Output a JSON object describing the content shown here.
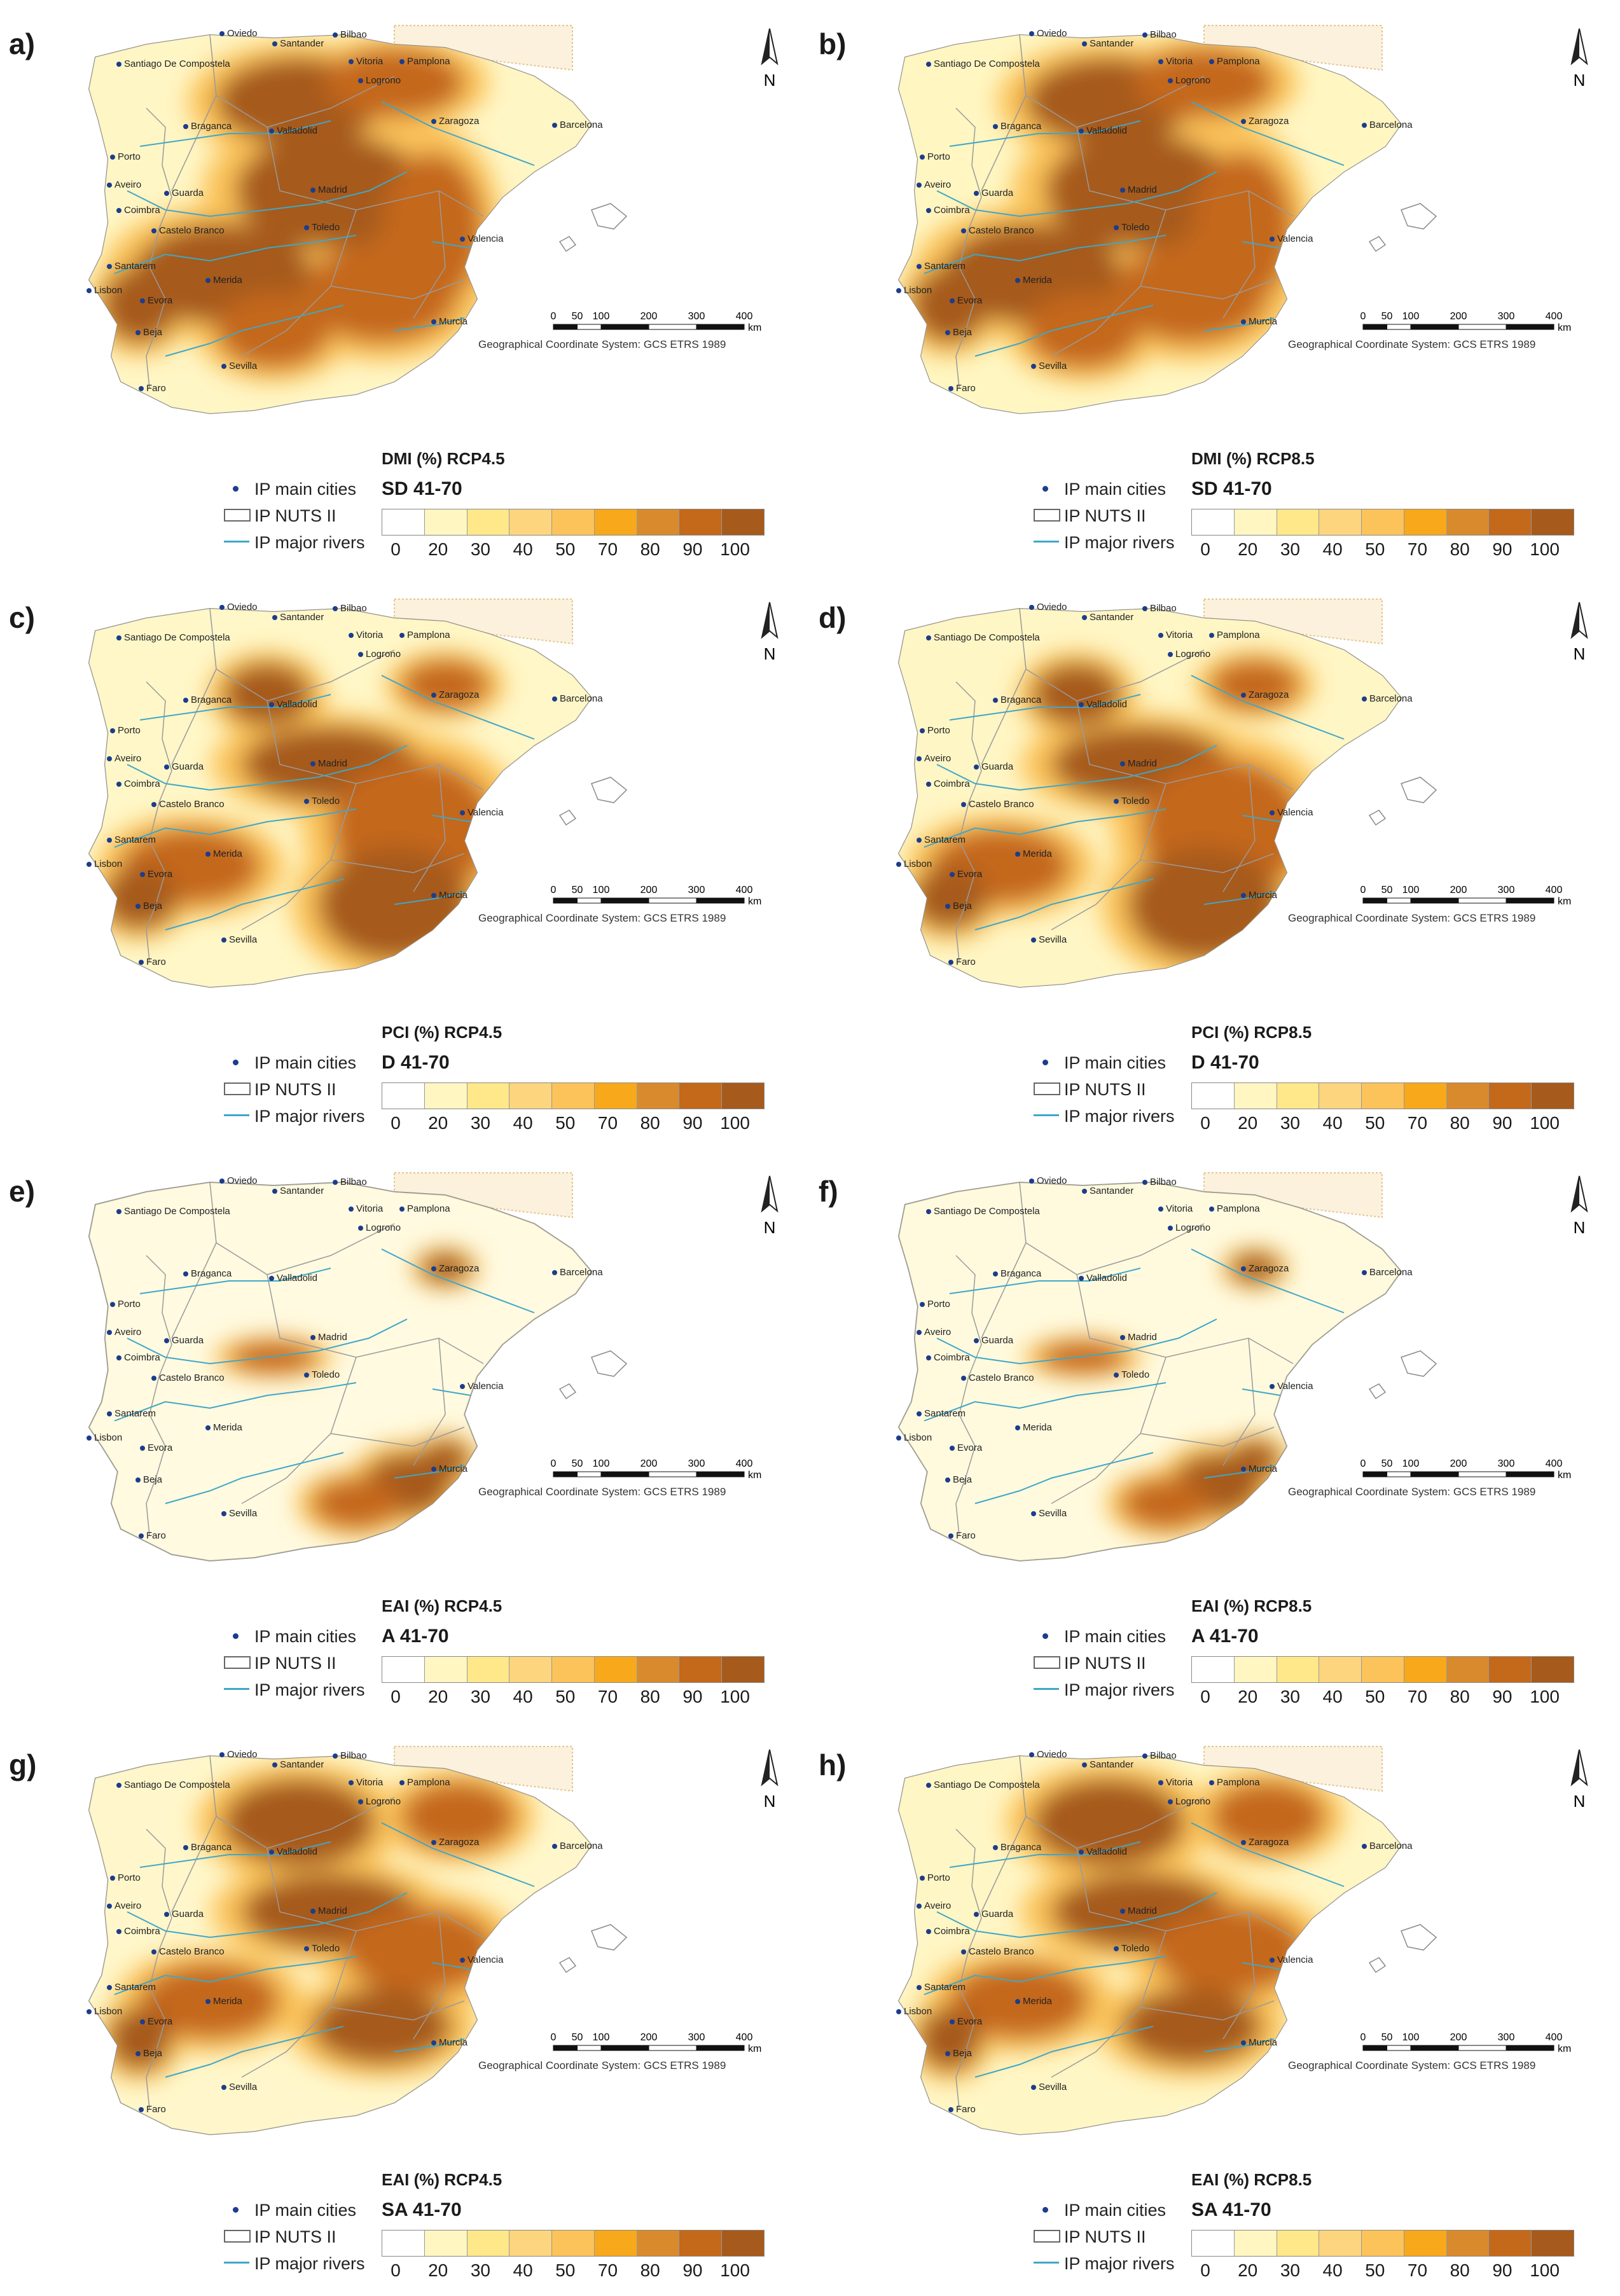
{
  "legend": {
    "cities": "IP main cities",
    "nuts": "IP NUTS II",
    "rivers": "IP major rivers",
    "classes": [
      "0",
      "20",
      "30",
      "40",
      "50",
      "70",
      "80",
      "90",
      "100"
    ],
    "colors": [
      "#ffffff",
      "#fff6c2",
      "#fee88a",
      "#fdd57e",
      "#fbc35a",
      "#f7a81b",
      "#d98a2c",
      "#c4681a",
      "#a65a1c"
    ]
  },
  "map": {
    "north": "N",
    "scale_labels": [
      "0",
      "50",
      "100",
      "200",
      "300",
      "400"
    ],
    "scale_unit": "km",
    "gcs": "Geographical Coordinate System: GCS ETRS 1989",
    "cities": [
      "Oviedo",
      "Santander",
      "Bilbao",
      "Santiago De Compostela",
      "Vitoria",
      "Pamplona",
      "Logrono",
      "Zaragoza",
      "Barcelona",
      "Braganca",
      "Valladolid",
      "Porto",
      "Aveiro",
      "Guarda",
      "Coimbra",
      "Madrid",
      "Castelo Branco",
      "Toledo",
      "Valencia",
      "Santarem",
      "Merida",
      "Lisbon",
      "Evora",
      "Beja",
      "Murcia",
      "Sevilla",
      "Faro"
    ]
  },
  "panels": [
    {
      "label": "a)",
      "title": "DMI (%) RCP4.5",
      "period": "SD 41-70",
      "level": 0.75
    },
    {
      "label": "b)",
      "title": "DMI (%) RCP8.5",
      "period": "SD 41-70",
      "level": 0.85
    },
    {
      "label": "c)",
      "title": "PCI (%) RCP4.5",
      "period": "D 41-70",
      "level": 0.7
    },
    {
      "label": "d)",
      "title": "PCI (%) RCP8.5",
      "period": "D 41-70",
      "level": 0.75
    },
    {
      "label": "e)",
      "title": "EAI (%) RCP4.5",
      "period": "A 41-70",
      "level": 0.3
    },
    {
      "label": "f)",
      "title": "EAI (%) RCP8.5",
      "period": "A 41-70",
      "level": 0.35
    },
    {
      "label": "g)",
      "title": "EAI (%) RCP4.5",
      "period": "SA 41-70",
      "level": 0.65
    },
    {
      "label": "h)",
      "title": "EAI (%) RCP8.5",
      "period": "SA 41-70",
      "level": 0.75
    }
  ]
}
